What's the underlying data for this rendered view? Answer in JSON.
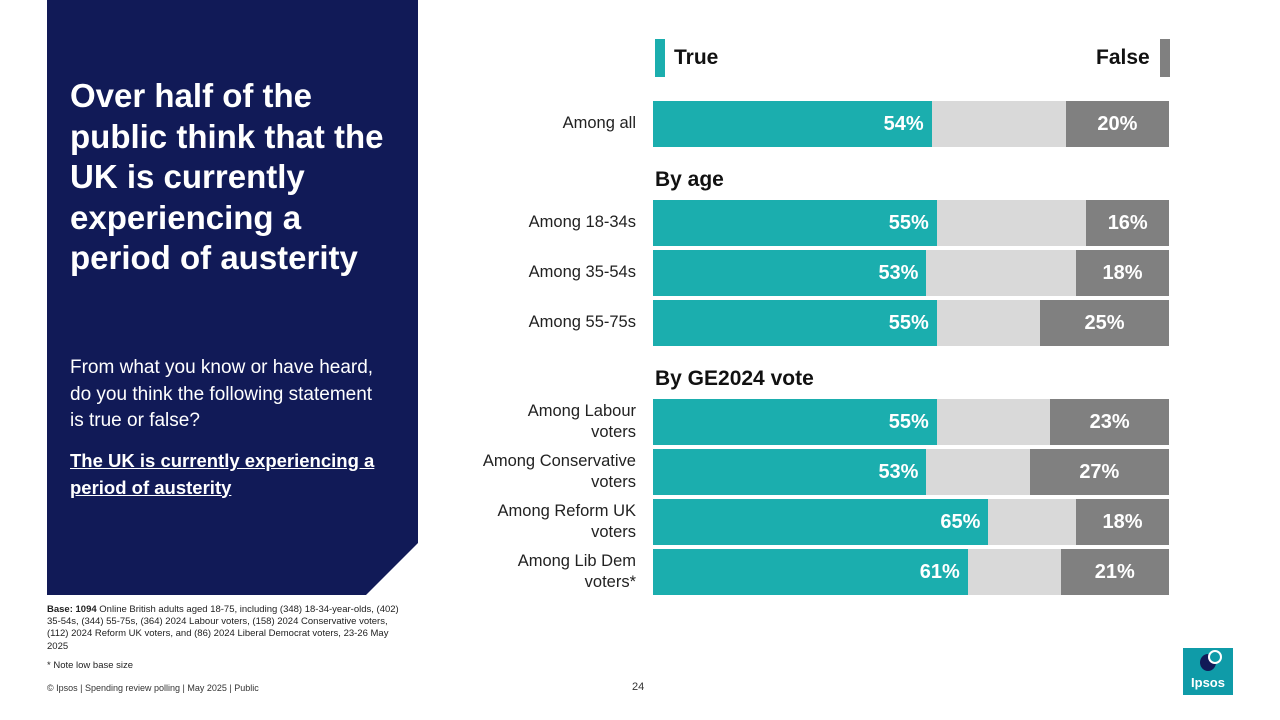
{
  "left_panel": {
    "headline": "Over half of the public think that the UK is currently experiencing a period of austerity",
    "question": "From what you know or have heard, do you think the following statement is true or false?",
    "statement": "The UK is currently experiencing a period of austerity"
  },
  "footnotes": {
    "base_bold": "Base: 1094",
    "base_text": " Online British adults aged 18-75, including (348) 18-34-year-olds, (402) 35-54s, (344) 55-75s, (364) 2024 Labour voters, (158) 2024 Conservative voters, (112) 2024 Reform UK voters, and (86) 2024 Liberal Democrat voters, 23-26 May 2025",
    "note": "* Note low base size",
    "footer": "© Ipsos | Spending review polling | May 2025 | Public",
    "page_number": "24"
  },
  "logo": {
    "text": "Ipsos"
  },
  "colors": {
    "true": "#1baeae",
    "neutral": "#d9d9d9",
    "false": "#808080",
    "panel": "#111a57"
  },
  "chart_data": {
    "type": "bar",
    "orientation": "horizontal-stacked",
    "legend": {
      "true_label": "True",
      "false_label": "False"
    },
    "sections": [
      "By age",
      "By GE2024 vote"
    ],
    "categories": [
      "Among all",
      "Among 18-34s",
      "Among 35-54s",
      "Among 55-75s",
      "Among Labour voters",
      "Among Conservative voters",
      "Among Reform UK voters",
      "Among Lib Dem voters*"
    ],
    "series": [
      {
        "name": "True",
        "values": [
          54,
          55,
          53,
          55,
          55,
          53,
          65,
          61
        ],
        "labels": [
          "54%",
          "55%",
          "53%",
          "55%",
          "55%",
          "53%",
          "65%",
          "61%"
        ]
      },
      {
        "name": "False",
        "values": [
          20,
          16,
          18,
          25,
          23,
          27,
          18,
          21
        ],
        "labels": [
          "20%",
          "16%",
          "18%",
          "25%",
          "23%",
          "27%",
          "18%",
          "21%"
        ]
      }
    ],
    "xlim": [
      0,
      100
    ]
  }
}
